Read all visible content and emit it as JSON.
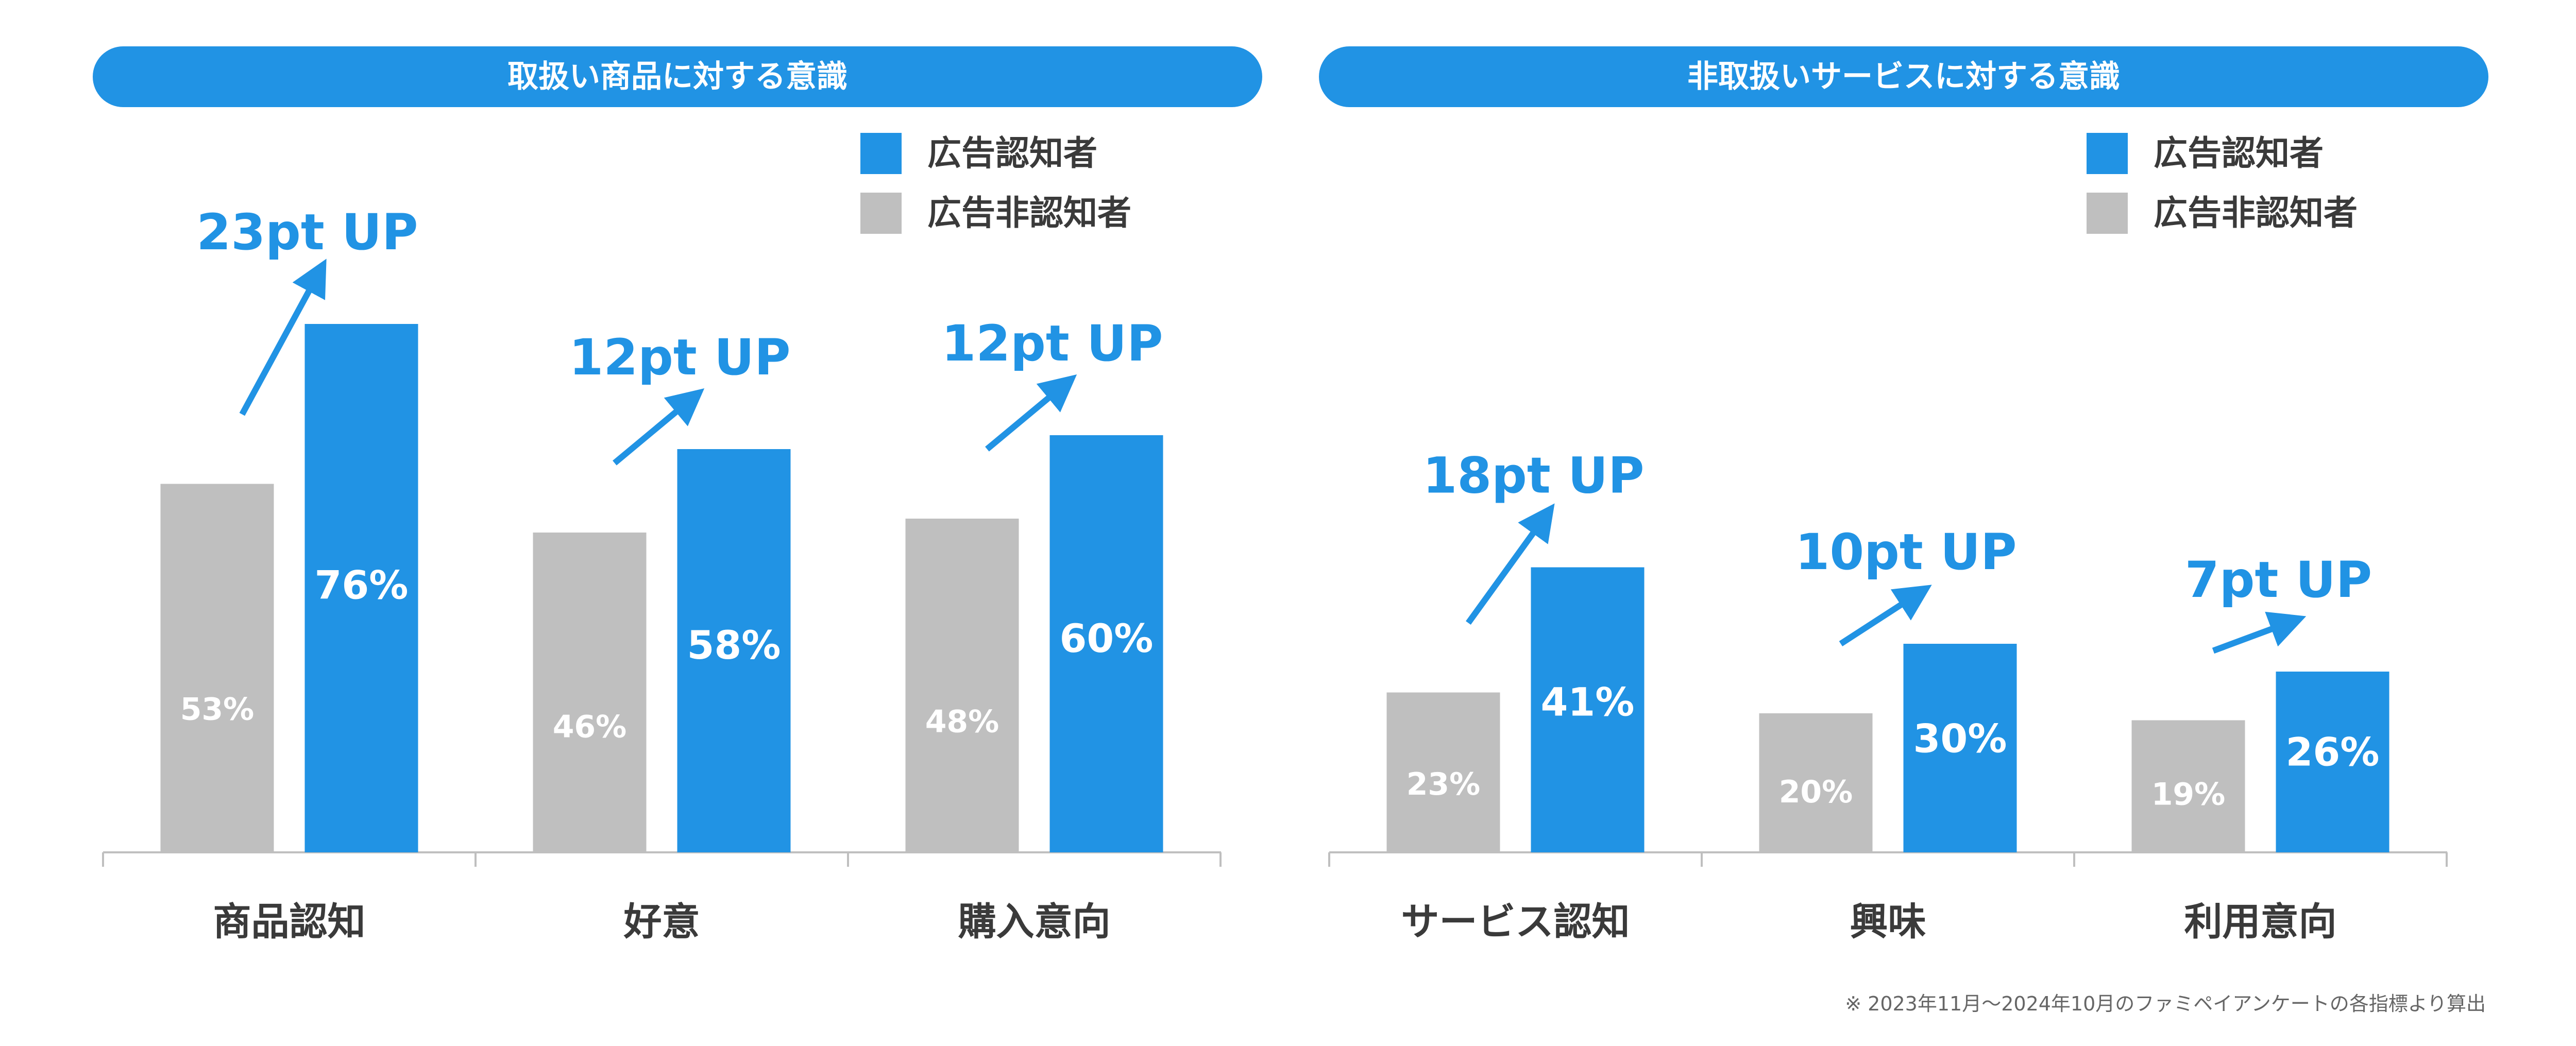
{
  "colors": {
    "accent": "#2193e4",
    "aware": "#2193e4",
    "unaware": "#bfbfbf",
    "axis": "#bfbfbf",
    "text": "#3a3a3a"
  },
  "legend": {
    "aware": "広告認知者",
    "unaware": "広告非認知者"
  },
  "footnote": "※ 2023年11月～2024年10月のファミペイアンケートの各指標より算出",
  "chart_data": [
    {
      "type": "bar",
      "title": "取扱い商品に対する意識",
      "categories": [
        "商品認知",
        "好意",
        "購入意向"
      ],
      "series": [
        {
          "name": "広告非認知者",
          "values": [
            53,
            46,
            48
          ],
          "labels": [
            "53%",
            "46%",
            "48%"
          ]
        },
        {
          "name": "広告認知者",
          "values": [
            76,
            58,
            60
          ],
          "labels": [
            "76%",
            "58%",
            "60%"
          ]
        }
      ],
      "annotations": [
        "23pt UP",
        "12pt UP",
        "12pt UP"
      ],
      "ylim": [
        0,
        80
      ],
      "legend_position": "top-right",
      "grid": false
    },
    {
      "type": "bar",
      "title": "非取扱いサービスに対する意識",
      "categories": [
        "サービス認知",
        "興味",
        "利用意向"
      ],
      "series": [
        {
          "name": "広告非認知者",
          "values": [
            23,
            20,
            19
          ],
          "labels": [
            "23%",
            "20%",
            "19%"
          ]
        },
        {
          "name": "広告認知者",
          "values": [
            41,
            30,
            26
          ],
          "labels": [
            "41%",
            "30%",
            "26%"
          ]
        }
      ],
      "annotations": [
        "18pt UP",
        "10pt UP",
        "7pt UP"
      ],
      "ylim": [
        0,
        80
      ],
      "legend_position": "top-right",
      "grid": false
    }
  ]
}
